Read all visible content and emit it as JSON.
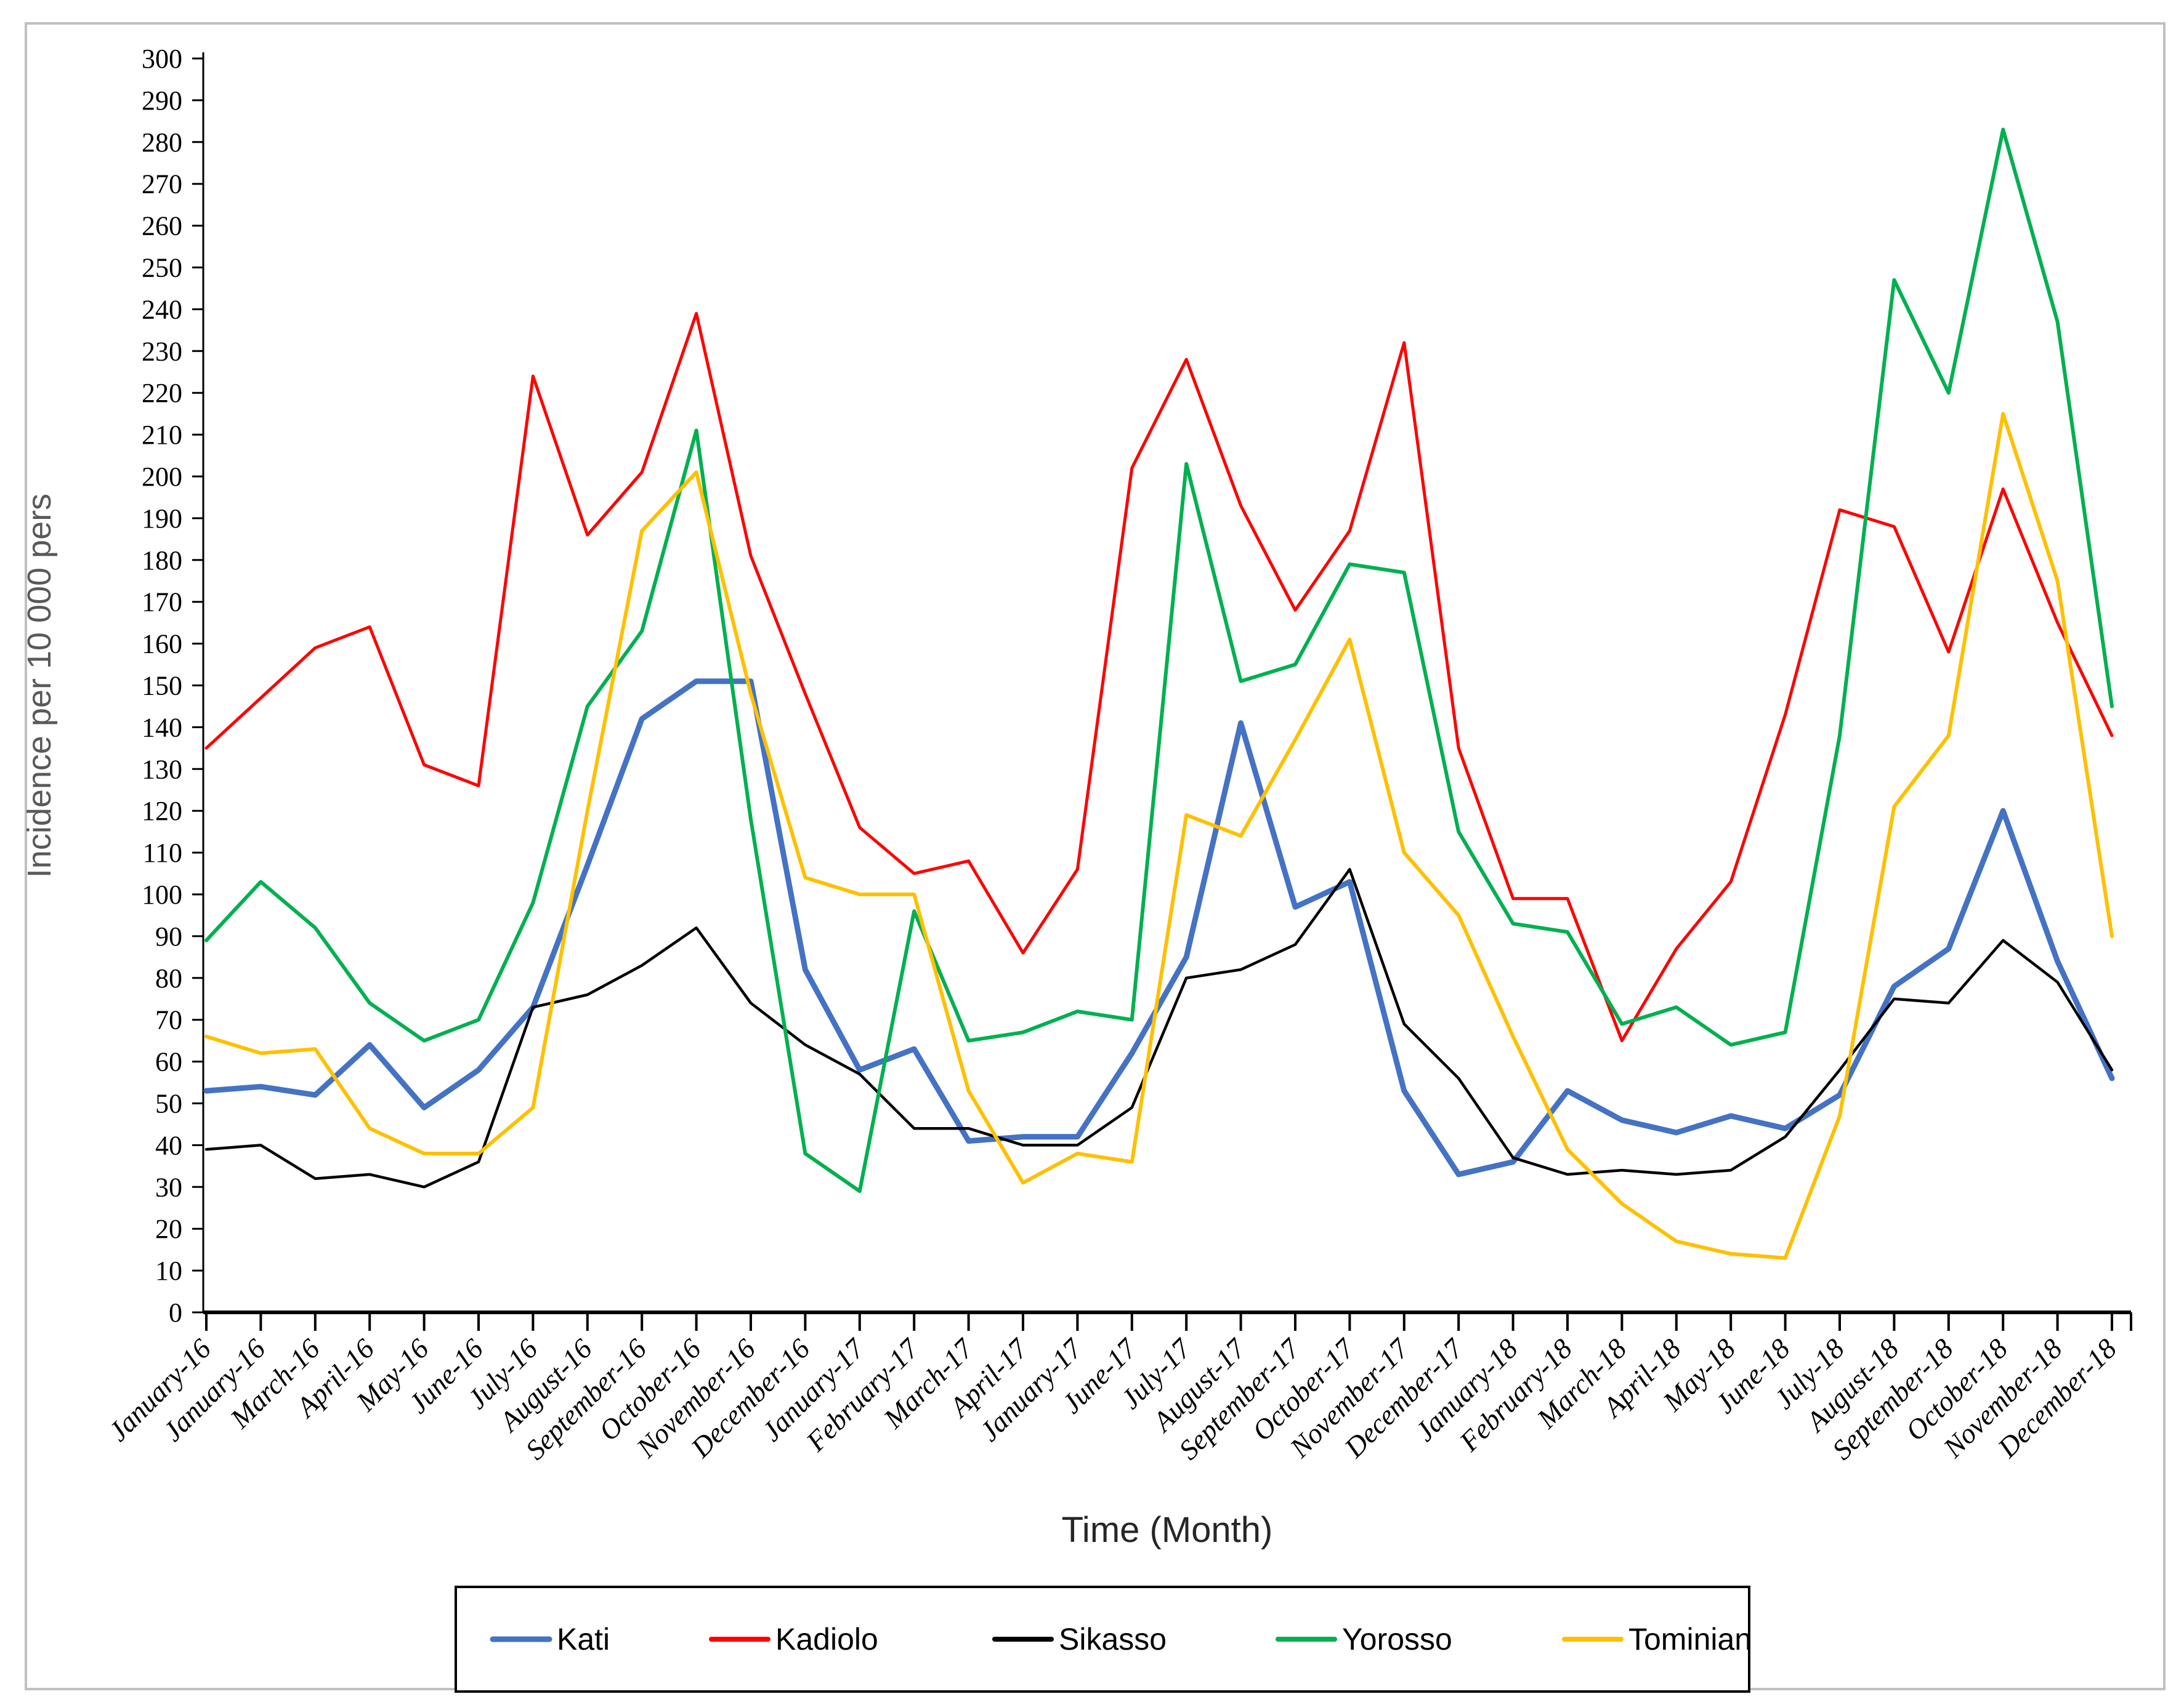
{
  "frame": {
    "border_color": "#c0c0c0",
    "background": "#ffffff"
  },
  "chart_data": {
    "type": "line",
    "title": "",
    "x_axis": {
      "label": "Time (Month)",
      "categories": [
        "January-16",
        "January-16",
        "March-16",
        "April-16",
        "May-16",
        "June-16",
        "July-16",
        "August-16",
        "September-16",
        "October-16",
        "November-16",
        "December-16",
        "January-17",
        "February-17",
        "March-17",
        "April-17",
        "January-17",
        "June-17",
        "July-17",
        "August-17",
        "September-17",
        "October-17",
        "November-17",
        "December-17",
        "January-18",
        "February-18",
        "March-18",
        "April-18",
        "May-18",
        "June-18",
        "July-18",
        "August-18",
        "September-18",
        "October-18",
        "November-18",
        "December-18"
      ]
    },
    "y_axis": {
      "label": "Incidence per 10 000  pers",
      "min": 0,
      "max": 300,
      "tick_step": 10,
      "tick_labels": [
        "0",
        "10",
        "20",
        "30",
        "40",
        "50",
        "60",
        "70",
        "80",
        "90",
        "100",
        "110",
        "120",
        "130",
        "140",
        "150",
        "160",
        "170",
        "180",
        "190",
        "200",
        "210",
        "220",
        "230",
        "240",
        "250",
        "260",
        "270",
        "280",
        "290",
        "300"
      ]
    },
    "legend": {
      "position": "bottom",
      "border_color": "#000000"
    },
    "series": [
      {
        "name": "Kati",
        "color": "#4472C4",
        "width": 9,
        "values": [
          53,
          54,
          52,
          64,
          49,
          58,
          73,
          107,
          142,
          151,
          151,
          82,
          58,
          63,
          41,
          42,
          42,
          62,
          85,
          141,
          97,
          103,
          53,
          33,
          36,
          53,
          46,
          43,
          47,
          44,
          52,
          78,
          87,
          120,
          84,
          56
        ]
      },
      {
        "name": "Kadiolo",
        "color": "#FF0000",
        "width": 5,
        "values": [
          135,
          147,
          159,
          164,
          131,
          126,
          224,
          186,
          201,
          239,
          181,
          148,
          116,
          105,
          108,
          86,
          106,
          202,
          228,
          193,
          168,
          187,
          232,
          135,
          99,
          99,
          65,
          87,
          103,
          143,
          192,
          188,
          158,
          197,
          165,
          138
        ]
      },
      {
        "name": "Sikasso",
        "color": "#000000",
        "width": 4.5,
        "values": [
          39,
          40,
          32,
          33,
          30,
          36,
          73,
          76,
          83,
          92,
          74,
          64,
          57,
          44,
          44,
          40,
          40,
          49,
          80,
          82,
          88,
          106,
          69,
          56,
          37,
          33,
          34,
          33,
          34,
          42,
          58,
          75,
          74,
          89,
          79,
          58
        ]
      },
      {
        "name": "Yorosso",
        "color": "#00B050",
        "width": 6,
        "values": [
          89,
          103,
          92,
          74,
          65,
          70,
          98,
          145,
          163,
          211,
          118,
          38,
          29,
          96,
          65,
          67,
          72,
          70,
          203,
          151,
          155,
          179,
          177,
          115,
          93,
          91,
          69,
          73,
          64,
          67,
          138,
          247,
          220,
          283,
          237,
          145
        ]
      },
      {
        "name": "Tominian",
        "color": "#FFC000",
        "width": 6,
        "values": [
          66,
          62,
          63,
          44,
          38,
          38,
          49,
          120,
          187,
          201,
          148,
          104,
          100,
          100,
          53,
          31,
          38,
          36,
          119,
          114,
          137,
          161,
          110,
          95,
          66,
          39,
          26,
          17,
          14,
          13,
          47,
          121,
          138,
          215,
          175,
          90
        ]
      }
    ]
  }
}
